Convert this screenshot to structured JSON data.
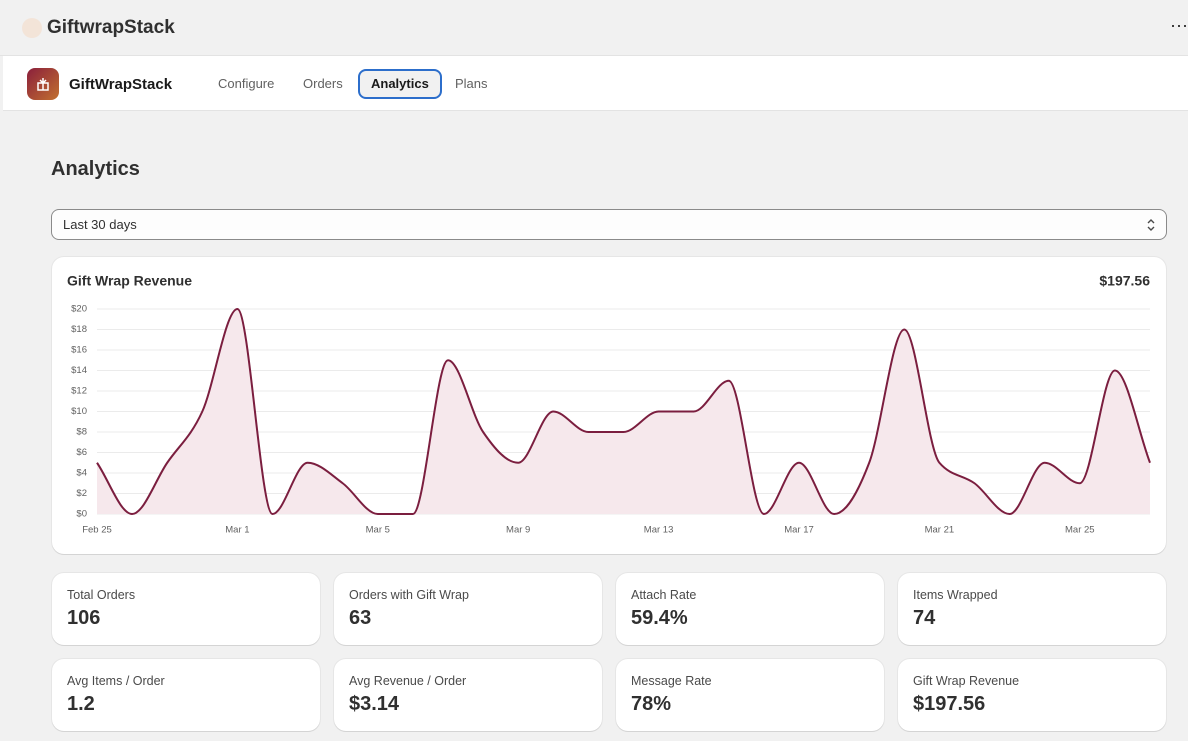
{
  "header": {
    "brand": "GiftwrapStack"
  },
  "nav": {
    "app_name": "GiftWrapStack",
    "tabs": [
      "Configure",
      "Orders",
      "Analytics",
      "Plans"
    ],
    "active": 2
  },
  "page_title": "Analytics",
  "filter": "Last 30 days",
  "chart_data": {
    "type": "area",
    "title": "Gift Wrap Revenue",
    "total": "$197.56",
    "categories": [
      "Feb 25",
      null,
      null,
      null,
      "Mar 1",
      null,
      null,
      null,
      "Mar 5",
      null,
      null,
      null,
      "Mar 9",
      null,
      null,
      null,
      "Mar 13",
      null,
      null,
      null,
      "Mar 17",
      null,
      null,
      null,
      "Mar 21",
      null,
      null,
      null,
      "Mar 25",
      null,
      null
    ],
    "series": [
      {
        "name": "Gift Wrap Revenue",
        "color": "#7b1e3f",
        "area_color": "#f6e8ec",
        "values": [
          5,
          0,
          5,
          10,
          20,
          0,
          5,
          3,
          0,
          0,
          15,
          8,
          5,
          10,
          8,
          8,
          10,
          10,
          13,
          0,
          5,
          0,
          5,
          18,
          5,
          3,
          0,
          5,
          3,
          14,
          5
        ]
      }
    ],
    "ylim": [
      0,
      20
    ],
    "yticks": [
      {
        "value": 0,
        "label": "$0"
      },
      {
        "value": 2,
        "label": "$2"
      },
      {
        "value": 4,
        "label": "$4"
      },
      {
        "value": 6,
        "label": "$6"
      },
      {
        "value": 8,
        "label": "$8"
      },
      {
        "value": 10,
        "label": "$10"
      },
      {
        "value": 12,
        "label": "$12"
      },
      {
        "value": 14,
        "label": "$14"
      },
      {
        "value": 16,
        "label": "$16"
      },
      {
        "value": 18,
        "label": "$18"
      },
      {
        "value": 20,
        "label": "$20"
      }
    ],
    "grid": true
  },
  "stats": [
    {
      "label": "Total Orders",
      "value": "106"
    },
    {
      "label": "Orders with Gift Wrap",
      "value": "63"
    },
    {
      "label": "Attach Rate",
      "value": "59.4%"
    },
    {
      "label": "Items Wrapped",
      "value": "74"
    },
    {
      "label": "Avg Items / Order",
      "value": "1.2"
    },
    {
      "label": "Avg Revenue / Order",
      "value": "$3.14"
    },
    {
      "label": "Message Rate",
      "value": "78%"
    },
    {
      "label": "Gift Wrap Revenue",
      "value": "$197.56"
    }
  ]
}
